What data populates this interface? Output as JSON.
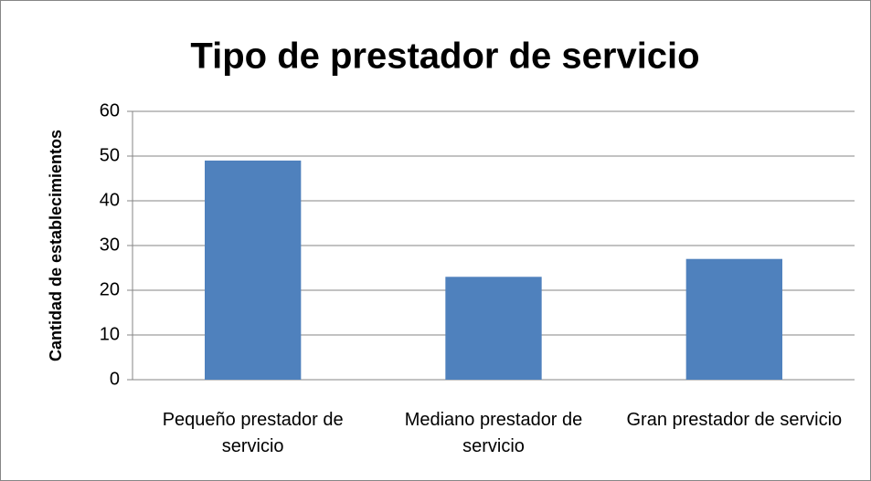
{
  "chart_data": {
    "type": "bar",
    "title": "Tipo de prestador de servicio",
    "y_label": "Cantidad de establecimientos",
    "categories": [
      "Pequeño prestador de servicio",
      "Mediano prestador de servicio",
      "Gran prestador de servicio"
    ],
    "values": [
      49,
      23,
      27
    ],
    "color": "#4f81bd",
    "ylim": [
      0,
      60
    ],
    "yticks": [
      0,
      10,
      20,
      30,
      40,
      50,
      60
    ],
    "grid": true
  }
}
